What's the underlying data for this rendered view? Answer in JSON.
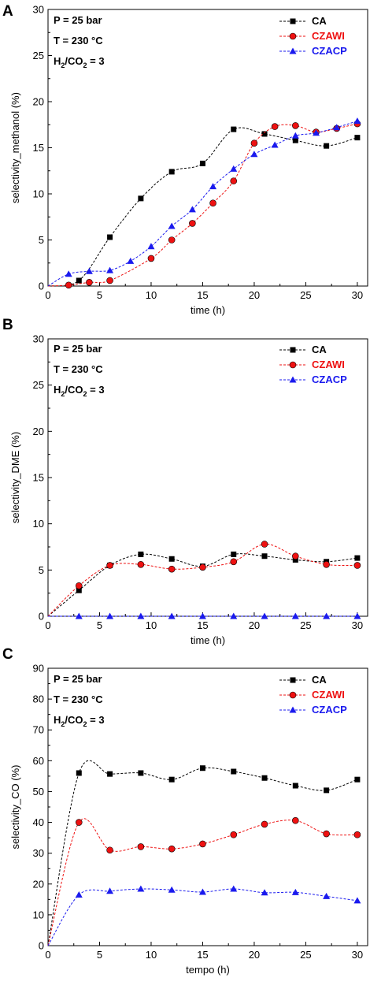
{
  "conditions": {
    "pressure": "P = 25 bar",
    "temperature": "T = 230 °C",
    "ratio_prefix": "H",
    "ratio_sub1": "2",
    "ratio_mid": "/CO",
    "ratio_sub2": "2",
    "ratio_suffix": " = 3"
  },
  "legend": [
    {
      "label": "CA",
      "color": "#000000",
      "marker": "square"
    },
    {
      "label": "CZAWI",
      "color": "#ee1111",
      "marker": "circle"
    },
    {
      "label": "CZACP",
      "color": "#1a1aee",
      "marker": "triangle"
    }
  ],
  "panels": [
    {
      "letter": "A"
    },
    {
      "letter": "B"
    },
    {
      "letter": "C"
    }
  ],
  "chart_data": [
    {
      "type": "line",
      "panel": "A",
      "xlabel": "time (h)",
      "ylabel": "selectivity_methanol (%)",
      "xlim": [
        0,
        31
      ],
      "ylim": [
        0,
        30
      ],
      "xticks": [
        0,
        5,
        10,
        15,
        20,
        25,
        30
      ],
      "yticks": [
        0,
        5,
        10,
        15,
        20,
        25,
        30
      ],
      "series": [
        {
          "name": "CA",
          "x": [
            0,
            3,
            6,
            9,
            12,
            15,
            18,
            21,
            24,
            27,
            30
          ],
          "y": [
            0,
            0.6,
            5.3,
            9.5,
            12.4,
            13.3,
            17.0,
            16.5,
            15.8,
            15.2,
            16.1
          ]
        },
        {
          "name": "CZAWI",
          "x": [
            0,
            2,
            4,
            6,
            10,
            12,
            14,
            16,
            18,
            20,
            22,
            24,
            26,
            28,
            30
          ],
          "y": [
            0,
            0.1,
            0.4,
            0.6,
            3.0,
            5.0,
            6.8,
            9.0,
            11.4,
            15.5,
            17.3,
            17.4,
            16.7,
            17.1,
            17.6
          ]
        },
        {
          "name": "CZACP",
          "x": [
            0,
            2,
            4,
            6,
            8,
            10,
            12,
            14,
            16,
            18,
            20,
            22,
            24,
            26,
            28,
            30
          ],
          "y": [
            0,
            1.3,
            1.6,
            1.7,
            2.7,
            4.3,
            6.5,
            8.3,
            10.8,
            12.7,
            14.3,
            15.3,
            16.3,
            16.6,
            17.2,
            17.9
          ]
        }
      ]
    },
    {
      "type": "line",
      "panel": "B",
      "xlabel": "time (h)",
      "ylabel": "selectivity_DME (%)",
      "xlim": [
        0,
        31
      ],
      "ylim": [
        0,
        30
      ],
      "xticks": [
        0,
        5,
        10,
        15,
        20,
        25,
        30
      ],
      "yticks": [
        0,
        5,
        10,
        15,
        20,
        25,
        30
      ],
      "series": [
        {
          "name": "CA",
          "x": [
            0,
            3,
            6,
            9,
            12,
            15,
            18,
            21,
            24,
            27,
            30
          ],
          "y": [
            0,
            2.8,
            5.5,
            6.7,
            6.2,
            5.4,
            6.7,
            6.5,
            6.1,
            5.9,
            6.3
          ]
        },
        {
          "name": "CZAWI",
          "x": [
            0,
            3,
            6,
            9,
            12,
            15,
            18,
            21,
            24,
            27,
            30
          ],
          "y": [
            0,
            3.3,
            5.5,
            5.6,
            5.1,
            5.3,
            5.9,
            7.8,
            6.5,
            5.6,
            5.5
          ]
        },
        {
          "name": "CZACP",
          "x": [
            0,
            3,
            6,
            9,
            12,
            15,
            18,
            21,
            24,
            27,
            30
          ],
          "y": [
            0,
            0,
            0,
            0,
            0,
            0,
            0,
            0,
            0,
            0,
            0
          ]
        }
      ]
    },
    {
      "type": "line",
      "panel": "C",
      "xlabel": "tempo (h)",
      "ylabel": "selectivity_CO (%)",
      "xlim": [
        0,
        31
      ],
      "ylim": [
        0,
        90
      ],
      "xticks": [
        0,
        5,
        10,
        15,
        20,
        25,
        30
      ],
      "yticks": [
        0,
        10,
        20,
        30,
        40,
        50,
        60,
        70,
        80,
        90
      ],
      "series": [
        {
          "name": "CA",
          "x": [
            0,
            3,
            6,
            9,
            12,
            15,
            18,
            21,
            24,
            27,
            30
          ],
          "y": [
            0,
            56.0,
            55.7,
            56.0,
            53.9,
            57.6,
            56.5,
            54.4,
            51.9,
            50.4,
            53.9
          ]
        },
        {
          "name": "CZAWI",
          "x": [
            0,
            3,
            6,
            9,
            12,
            15,
            18,
            21,
            24,
            27,
            30
          ],
          "y": [
            0,
            40.0,
            31.0,
            32.1,
            31.4,
            33.0,
            36.0,
            39.4,
            40.6,
            36.3,
            36.0
          ]
        },
        {
          "name": "CZACP",
          "x": [
            0,
            3,
            6,
            9,
            12,
            15,
            18,
            21,
            24,
            27,
            30
          ],
          "y": [
            0,
            16.5,
            17.7,
            18.4,
            18.1,
            17.4,
            18.4,
            17.2,
            17.3,
            16.0,
            14.6
          ]
        }
      ]
    }
  ]
}
